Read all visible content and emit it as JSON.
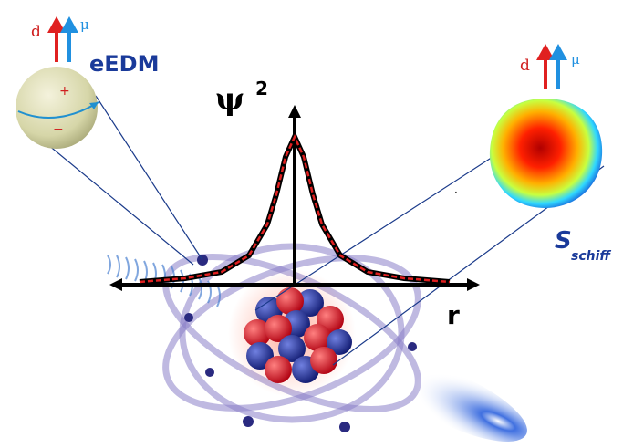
{
  "electron": {
    "dipole_label": "d",
    "moment_label": "μ",
    "name": "eEDM",
    "plus": "+",
    "minus": "−"
  },
  "plot": {
    "y_label": "ψ",
    "y_exponent": "2",
    "x_label": "r"
  },
  "nucleus_moment": {
    "dipole_label": "d",
    "moment_label": "μ",
    "schiff_symbol": "S",
    "schiff_subscript": "schiff"
  }
}
